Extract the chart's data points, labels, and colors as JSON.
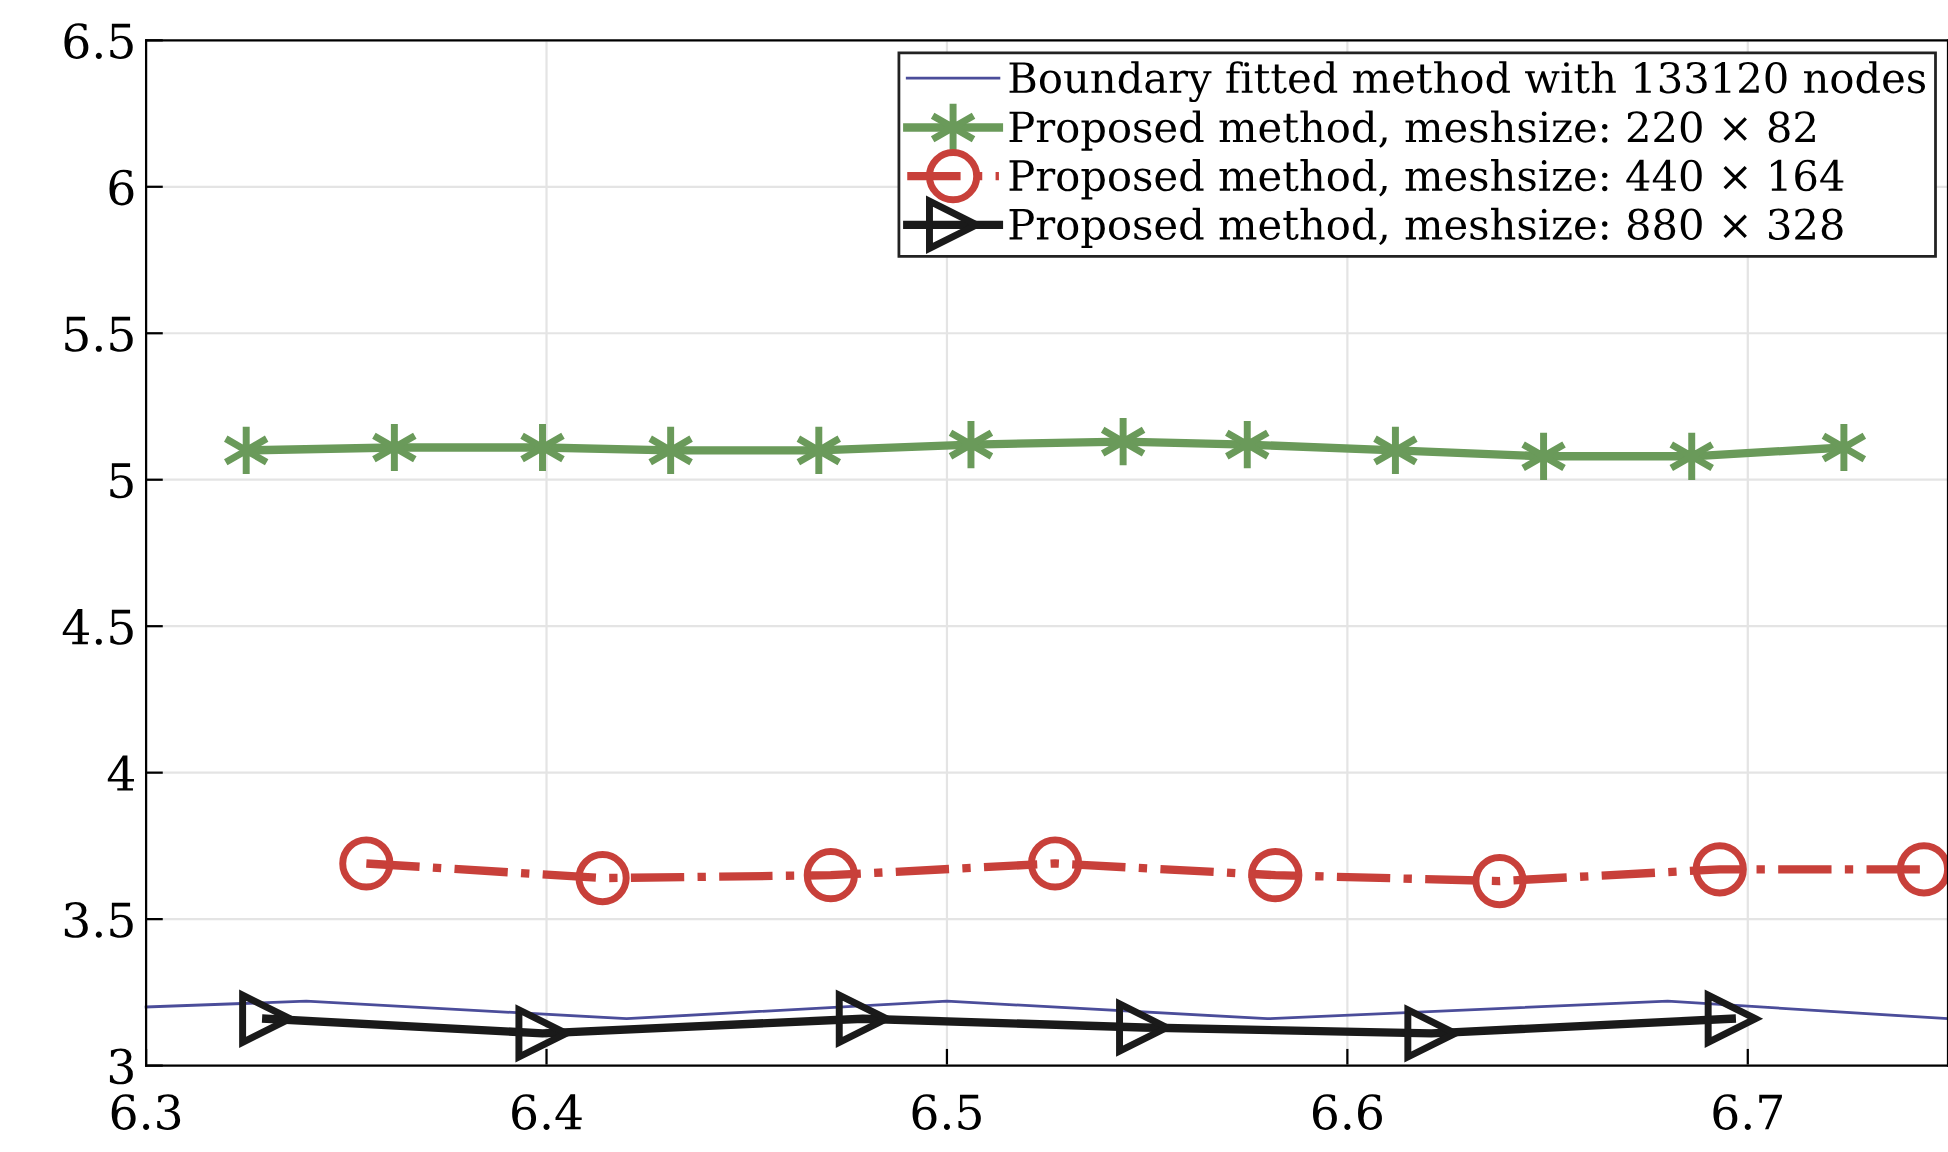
{
  "chart_data": {
    "type": "line",
    "xlim": [
      6.3,
      6.75
    ],
    "ylim": [
      3,
      6.5
    ],
    "xticks": [
      6.3,
      6.4,
      6.5,
      6.6,
      6.7
    ],
    "yticks": [
      3,
      3.5,
      4,
      4.5,
      5,
      5.5,
      6,
      6.5
    ],
    "grid": true,
    "legend": "top right",
    "series": [
      {
        "name": "Boundary fitted method with 133120 nodes",
        "color": "#4b4d9a",
        "marker": "none",
        "line_style": "solid",
        "x": [
          6.3,
          6.34,
          6.42,
          6.5,
          6.58,
          6.68,
          6.75
        ],
        "values": [
          3.2,
          3.22,
          3.16,
          3.22,
          3.16,
          3.22,
          3.16
        ]
      },
      {
        "name": "Proposed method, meshsize: 220 × 82",
        "color": "#6a9a5a",
        "marker": "cross",
        "line_style": "solid",
        "x": [
          6.325,
          6.362,
          6.399,
          6.431,
          6.468,
          6.506,
          6.544,
          6.575,
          6.612,
          6.649,
          6.686,
          6.724
        ],
        "values": [
          5.1,
          5.11,
          5.11,
          5.1,
          5.1,
          5.12,
          5.13,
          5.12,
          5.1,
          5.08,
          5.08,
          5.11
        ]
      },
      {
        "name": "Proposed method, meshsize: 440 × 164",
        "color": "#c8403a",
        "marker": "circle",
        "line_style": "dashed",
        "x": [
          6.355,
          6.414,
          6.471,
          6.527,
          6.582,
          6.638,
          6.693,
          6.744
        ],
        "values": [
          3.69,
          3.64,
          3.65,
          3.69,
          3.65,
          3.63,
          3.67,
          3.67
        ]
      },
      {
        "name": "Proposed method, meshsize: 880 × 328",
        "color": "#1a1a1a",
        "marker": "triangle",
        "line_style": "solid",
        "x": [
          6.33,
          6.399,
          6.479,
          6.549,
          6.621,
          6.696
        ],
        "values": [
          3.16,
          3.11,
          3.16,
          3.13,
          3.11,
          3.16
        ]
      }
    ]
  }
}
